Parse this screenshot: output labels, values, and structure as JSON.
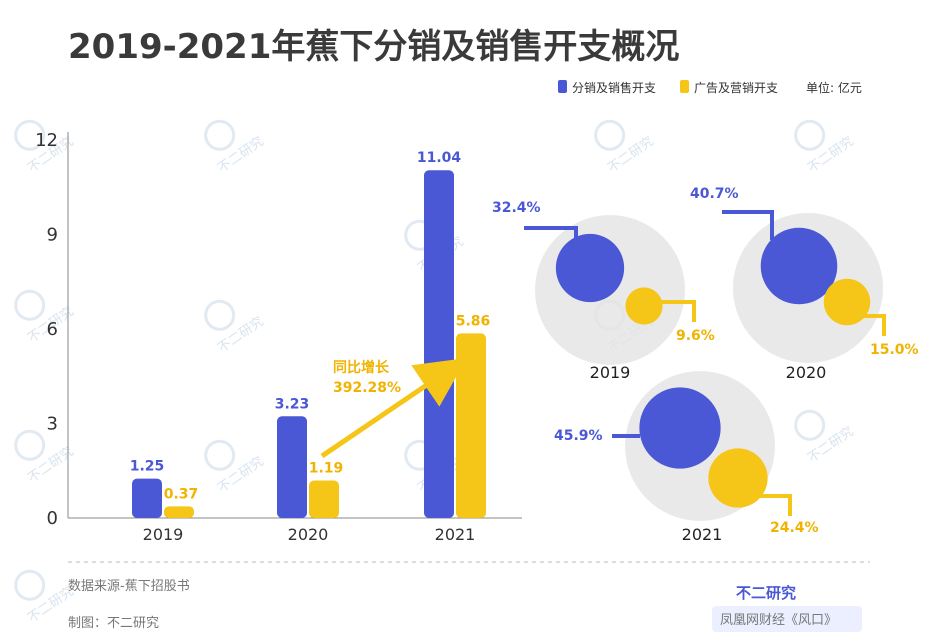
{
  "title": "2019-2021年蕉下分销及销售开支概况",
  "legend": {
    "items": [
      {
        "label": "分销及销售开支",
        "color": "#4a58d6"
      },
      {
        "label": "广告及营销开支",
        "color": "#f5c518"
      }
    ],
    "unit": "单位: 亿元"
  },
  "chart_data": {
    "type": "bar",
    "categories": [
      "2019",
      "2020",
      "2021"
    ],
    "series": [
      {
        "name": "分销及销售开支",
        "values": [
          1.25,
          3.23,
          11.04
        ],
        "color": "#4a58d6"
      },
      {
        "name": "广告及营销开支",
        "values": [
          0.37,
          1.19,
          5.86
        ],
        "color": "#f5c518"
      }
    ],
    "ylim": [
      0,
      12
    ],
    "yticks": [
      "0",
      "3",
      "6",
      "9",
      "12"
    ],
    "annotation": {
      "line1": "同比增长",
      "line2": "392.28%"
    }
  },
  "bubbles": [
    {
      "year": "2019",
      "blue_pct": "32.4%",
      "yellow_pct": "9.6%",
      "blue_value": 32.4,
      "yellow_value": 9.6
    },
    {
      "year": "2020",
      "blue_pct": "40.7%",
      "yellow_pct": "15.0%",
      "blue_value": 40.7,
      "yellow_value": 15.0
    },
    {
      "year": "2021",
      "blue_pct": "45.9%",
      "yellow_pct": "24.4%",
      "blue_value": 45.9,
      "yellow_value": 24.4
    }
  ],
  "footer": {
    "source": "数据来源-蕉下招股书",
    "author": "制图：不二研究",
    "brand": "不二研究",
    "watermark": "凤凰网财经《风口》"
  },
  "watermark_text": "不二研究",
  "colors": {
    "blue": "#4a58d6",
    "yellow": "#f5c518",
    "yellow_text": "#f0b400",
    "circle_bg": "#e4e4e4"
  }
}
